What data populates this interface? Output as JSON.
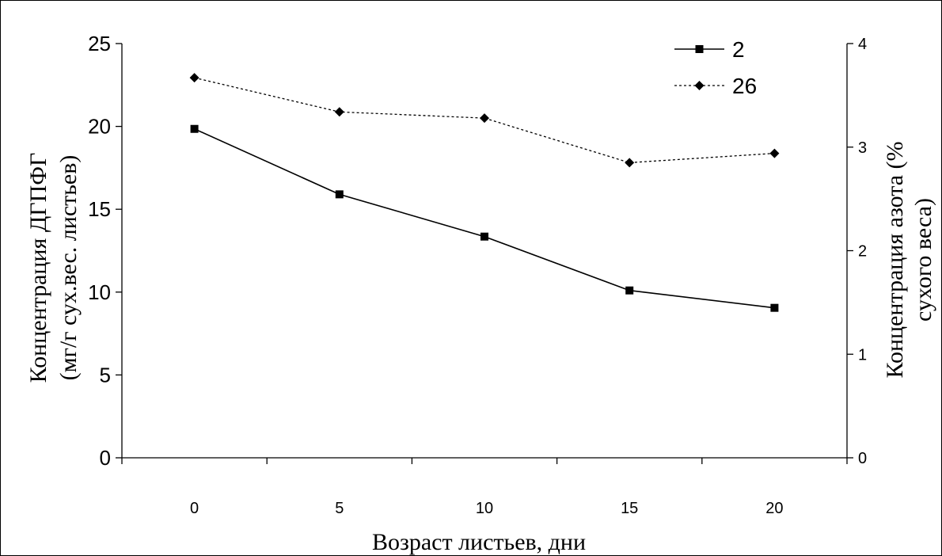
{
  "chart_data": {
    "type": "line",
    "xlabel": "Возраст листьев, дни",
    "ylabel_left_line1": "Концентрация ДГПФГ",
    "ylabel_left_line2": "(мг/г сух.вес. листьев)",
    "ylabel_right_line1": "Концентрация азота (%",
    "ylabel_right_line2": "сухого веса)",
    "categories": [
      "0",
      "5",
      "10",
      "15",
      "20"
    ],
    "y_left": {
      "min": 0,
      "max": 25,
      "ticks": [
        0,
        5,
        10,
        15,
        20,
        25
      ]
    },
    "y_right": {
      "min": 0,
      "max": 4,
      "ticks": [
        0,
        1,
        2,
        3,
        4
      ]
    },
    "legend_position": "top-right",
    "grid": false,
    "series": [
      {
        "name": "2",
        "axis": "left",
        "style": "solid",
        "marker": "square",
        "color": "#000000",
        "values": [
          19.85,
          15.9,
          13.35,
          10.1,
          9.05
        ]
      },
      {
        "name": "26",
        "axis": "right",
        "style": "dotted",
        "marker": "diamond",
        "color": "#000000",
        "values": [
          3.67,
          3.34,
          3.28,
          2.85,
          2.94
        ]
      }
    ]
  }
}
